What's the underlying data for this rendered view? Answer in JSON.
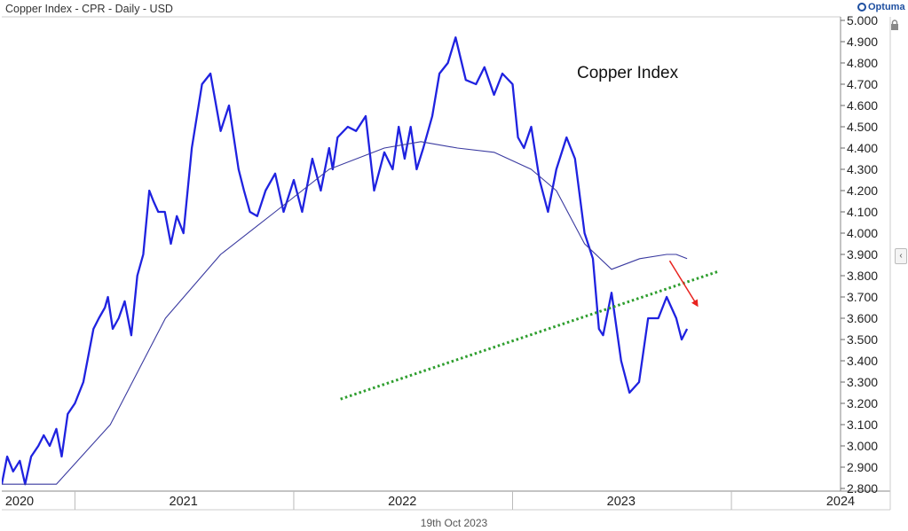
{
  "header": {
    "title": "Copper Index - CPR - Daily - USD",
    "brand": "Optuma"
  },
  "footer": {
    "date": "19th Oct 2023"
  },
  "chart_data": {
    "type": "line",
    "title": "Copper Index",
    "x_tick_labels": [
      "2020",
      "2021",
      "2022",
      "2023",
      "2024"
    ],
    "y_ticks": [
      2.8,
      2.9,
      3.0,
      3.1,
      3.2,
      3.3,
      3.4,
      3.5,
      3.6,
      3.7,
      3.8,
      3.9,
      4.0,
      4.1,
      4.2,
      4.3,
      4.4,
      4.5,
      4.6,
      4.7,
      4.8,
      4.9,
      5.0
    ],
    "y_tick_labels": [
      "2.800",
      "2.900",
      "3.000",
      "3.100",
      "3.200",
      "3.300",
      "3.400",
      "3.500",
      "3.600",
      "3.700",
      "3.800",
      "3.900",
      "4.000",
      "4.100",
      "4.200",
      "4.300",
      "4.400",
      "4.500",
      "4.600",
      "4.700",
      "4.800",
      "4.900",
      "5.000"
    ],
    "ylim": [
      2.8,
      5.0
    ],
    "xlim": [
      "2020-09-01",
      "2024-07-01"
    ],
    "grid": false,
    "colors": {
      "price": "#1f22e0",
      "moving_average": "#3a3aa0",
      "trendline": "#2e9e2e",
      "arrow": "#e8231f"
    },
    "series": [
      {
        "role": "price",
        "x": [
          "2020-09-01",
          "2020-09-10",
          "2020-09-20",
          "2020-10-01",
          "2020-10-10",
          "2020-10-20",
          "2020-11-01",
          "2020-11-10",
          "2020-11-20",
          "2020-12-01",
          "2020-12-10",
          "2020-12-20",
          "2021-01-01",
          "2021-01-15",
          "2021-02-01",
          "2021-02-10",
          "2021-02-20",
          "2021-02-25",
          "2021-03-05",
          "2021-03-15",
          "2021-03-25",
          "2021-04-05",
          "2021-04-15",
          "2021-04-25",
          "2021-05-05",
          "2021-05-12",
          "2021-05-20",
          "2021-05-31",
          "2021-06-10",
          "2021-06-20",
          "2021-07-01",
          "2021-07-15",
          "2021-08-01",
          "2021-08-15",
          "2021-09-01",
          "2021-09-15",
          "2021-10-01",
          "2021-10-10",
          "2021-10-20",
          "2021-11-01",
          "2021-11-15",
          "2021-12-01",
          "2021-12-15",
          "2022-01-01",
          "2022-01-15",
          "2022-02-01",
          "2022-02-15",
          "2022-03-01",
          "2022-03-07",
          "2022-03-15",
          "2022-04-01",
          "2022-04-15",
          "2022-05-01",
          "2022-05-15",
          "2022-06-01",
          "2022-06-15",
          "2022-06-25",
          "2022-07-05",
          "2022-07-15",
          "2022-07-25",
          "2022-08-05",
          "2022-08-20",
          "2022-09-01",
          "2022-09-15",
          "2022-09-28",
          "2022-10-15",
          "2022-11-01",
          "2022-11-15",
          "2022-12-01",
          "2022-12-15",
          "2023-01-01",
          "2023-01-10",
          "2023-01-20",
          "2023-02-01",
          "2023-02-15",
          "2023-03-01",
          "2023-03-15",
          "2023-04-01",
          "2023-04-15",
          "2023-05-01",
          "2023-05-15",
          "2023-05-25",
          "2023-06-01",
          "2023-06-15",
          "2023-07-01",
          "2023-07-15",
          "2023-07-31",
          "2023-08-15",
          "2023-09-01",
          "2023-09-15",
          "2023-10-01",
          "2023-10-10",
          "2023-10-19"
        ],
        "y": [
          2.82,
          2.95,
          2.88,
          2.93,
          2.82,
          2.95,
          3.0,
          3.05,
          3.0,
          3.08,
          2.95,
          3.15,
          3.2,
          3.3,
          3.55,
          3.6,
          3.65,
          3.7,
          3.55,
          3.6,
          3.68,
          3.52,
          3.8,
          3.9,
          4.2,
          4.15,
          4.1,
          4.1,
          3.95,
          4.08,
          4.0,
          4.4,
          4.7,
          4.75,
          4.48,
          4.6,
          4.3,
          4.2,
          4.1,
          4.08,
          4.2,
          4.28,
          4.1,
          4.25,
          4.1,
          4.35,
          4.2,
          4.4,
          4.3,
          4.45,
          4.5,
          4.48,
          4.55,
          4.2,
          4.38,
          4.3,
          4.5,
          4.35,
          4.5,
          4.3,
          4.4,
          4.55,
          4.75,
          4.8,
          4.92,
          4.72,
          4.7,
          4.78,
          4.65,
          4.75,
          4.7,
          4.45,
          4.4,
          4.5,
          4.25,
          4.1,
          4.3,
          4.45,
          4.35,
          4.0,
          3.88,
          3.55,
          3.52,
          3.72,
          3.4,
          3.25,
          3.3,
          3.6,
          3.6,
          3.7,
          3.6,
          3.5,
          3.55
        ]
      },
      {
        "role": "moving_average",
        "x": [
          "2020-09-01",
          "2020-12-01",
          "2021-03-01",
          "2021-06-01",
          "2021-09-01",
          "2021-12-01",
          "2022-03-01",
          "2022-06-01",
          "2022-08-01",
          "2022-10-01",
          "2022-12-01",
          "2023-02-01",
          "2023-03-15",
          "2023-05-01",
          "2023-06-15",
          "2023-08-01",
          "2023-09-15",
          "2023-10-01",
          "2023-10-19"
        ],
        "y": [
          2.82,
          2.82,
          3.1,
          3.6,
          3.9,
          4.1,
          4.3,
          4.4,
          4.43,
          4.4,
          4.38,
          4.3,
          4.2,
          3.95,
          3.83,
          3.88,
          3.9,
          3.9,
          3.88
        ]
      }
    ],
    "annotations": [
      {
        "type": "trendline",
        "style": "dotted",
        "start": {
          "x": "2022-03-20",
          "y": 3.22
        },
        "end": {
          "x": "2023-12-10",
          "y": 3.82
        }
      },
      {
        "type": "arrow",
        "start": {
          "x": "2023-09-20",
          "y": 3.87
        },
        "end": {
          "x": "2023-11-05",
          "y": 3.66
        }
      }
    ]
  }
}
